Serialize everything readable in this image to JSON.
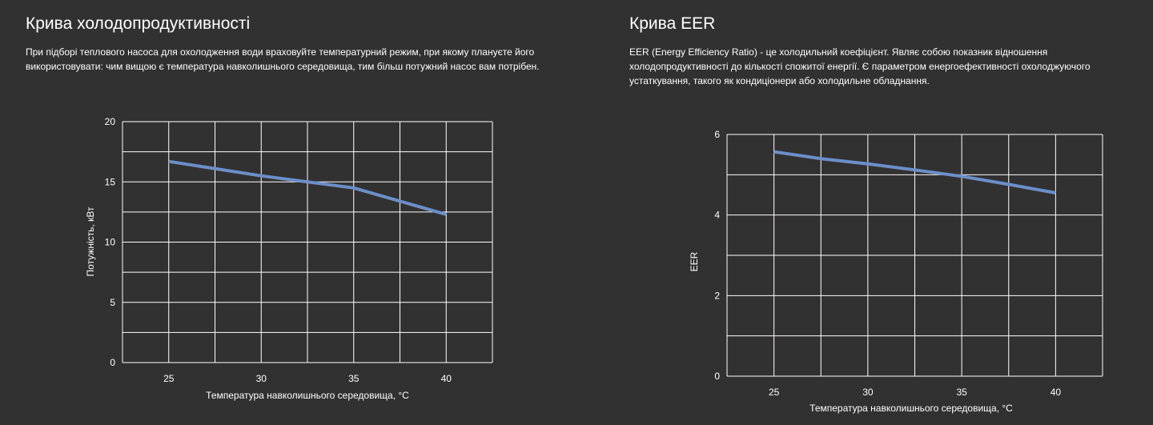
{
  "panels": [
    {
      "title": "Крива холодопродуктивності",
      "description": "При підборі теплового насоса для охолодження води враховуйте температурний режим, при якому плануєте його використовувати: чим вищою є температура навколишнього середовища, тим більш потужний насос вам потрібен."
    },
    {
      "title": "Крива EER",
      "description": "EER (Energy Efficiency Ratio) - це холодильний коефіцієнт. Являє собою показник відношення холодопродуктивності до кількості спожитої енергії. Є параметром енергоефективності охолоджуючого устаткування, такого як кондиціонери або холодильне обладнання."
    }
  ],
  "chart_data": [
    {
      "type": "line",
      "title": "",
      "xlabel": "Температура навколишнього середовища, °С",
      "ylabel": "Потужність, кВт",
      "xlim": [
        22.5,
        42.5
      ],
      "ylim": [
        0,
        20
      ],
      "x_ticks": [
        25,
        30,
        35,
        40
      ],
      "y_ticks": [
        0,
        5,
        10,
        15,
        20
      ],
      "x_grid_step": 2.5,
      "y_grid_step": 2.5,
      "grid": true,
      "line_color": "#6b8fc9",
      "series": [
        {
          "x": [
            25,
            30,
            35,
            40
          ],
          "y": [
            16.7,
            15.5,
            14.5,
            12.3
          ]
        }
      ]
    },
    {
      "type": "line",
      "title": "",
      "xlabel": "Температура навколишнього середовища, °С",
      "ylabel": "EER",
      "xlim": [
        22.5,
        42.5
      ],
      "ylim": [
        0,
        6
      ],
      "x_ticks": [
        25,
        30,
        35,
        40
      ],
      "y_ticks": [
        0,
        2,
        4,
        6
      ],
      "x_grid_step": 2.5,
      "y_grid_step": 1,
      "grid": true,
      "line_color": "#6b8fc9",
      "series": [
        {
          "x": [
            25,
            27.5,
            30,
            32.5,
            35,
            37.5,
            40
          ],
          "y": [
            5.57,
            5.4,
            5.27,
            5.12,
            4.96,
            4.76,
            4.55
          ]
        }
      ]
    }
  ]
}
